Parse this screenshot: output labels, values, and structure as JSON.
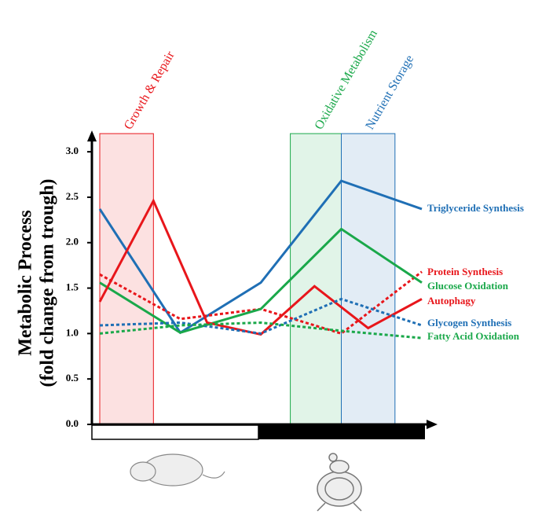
{
  "chart_data": {
    "type": "line",
    "y_label": [
      "Metabolic Process",
      "(fold change from trough)"
    ],
    "xlim": [
      0,
      6
    ],
    "ylim": [
      0,
      3.2
    ],
    "yticks": [
      {
        "value": 0,
        "label": "0.0"
      },
      0.5,
      {
        "value": 1,
        "label": "1.0"
      },
      1.5,
      {
        "value": 2,
        "label": "2.0"
      },
      2.5,
      {
        "value": 3,
        "label": "3.0"
      }
    ],
    "regions": [
      {
        "label": "Growth & Repair",
        "color": "#e8161b",
        "x": [
          0,
          1
        ]
      },
      {
        "label": "Oxidative Metabolism",
        "color": "#1aa84a",
        "x": [
          3.55,
          4.5
        ]
      },
      {
        "label": "Nutrient Storage",
        "color": "#1f6fb5",
        "x": [
          4.5,
          5.5
        ]
      }
    ],
    "series": [
      {
        "name": "Triglyceride Synthesis",
        "color": "#1f6fb5",
        "dashed": false,
        "x": [
          0,
          1.5,
          3,
          4.5,
          6
        ],
        "values": [
          2.37,
          1.01,
          1.56,
          2.68,
          2.37
        ]
      },
      {
        "name": "Protein Synthesis",
        "color": "#e8161b",
        "dashed": true,
        "x": [
          0,
          1.5,
          3,
          4.5,
          6
        ],
        "values": [
          1.65,
          1.16,
          1.27,
          1.0,
          1.68
        ]
      },
      {
        "name": "Glucose Oxidation",
        "color": "#1aa84a",
        "dashed": false,
        "x": [
          0,
          1.5,
          3,
          4.5,
          6
        ],
        "values": [
          1.56,
          1.01,
          1.27,
          2.15,
          1.56
        ]
      },
      {
        "name": "Autophagy",
        "color": "#e8161b",
        "dashed": false,
        "x": [
          0,
          1,
          2,
          3,
          4,
          5,
          6
        ],
        "values": [
          1.35,
          2.46,
          1.12,
          0.99,
          1.52,
          1.06,
          1.38
        ]
      },
      {
        "name": "Glycogen Synthesis",
        "color": "#1f6fb5",
        "dashed": true,
        "x": [
          0,
          1.5,
          3,
          4.5,
          6
        ],
        "values": [
          1.09,
          1.12,
          1.0,
          1.38,
          1.09
        ]
      },
      {
        "name": "Fatty Acid Oxidation",
        "color": "#1aa84a",
        "dashed": true,
        "x": [
          0,
          1.5,
          3,
          4.5,
          6
        ],
        "values": [
          1.0,
          1.09,
          1.12,
          1.03,
          0.95
        ]
      }
    ]
  }
}
